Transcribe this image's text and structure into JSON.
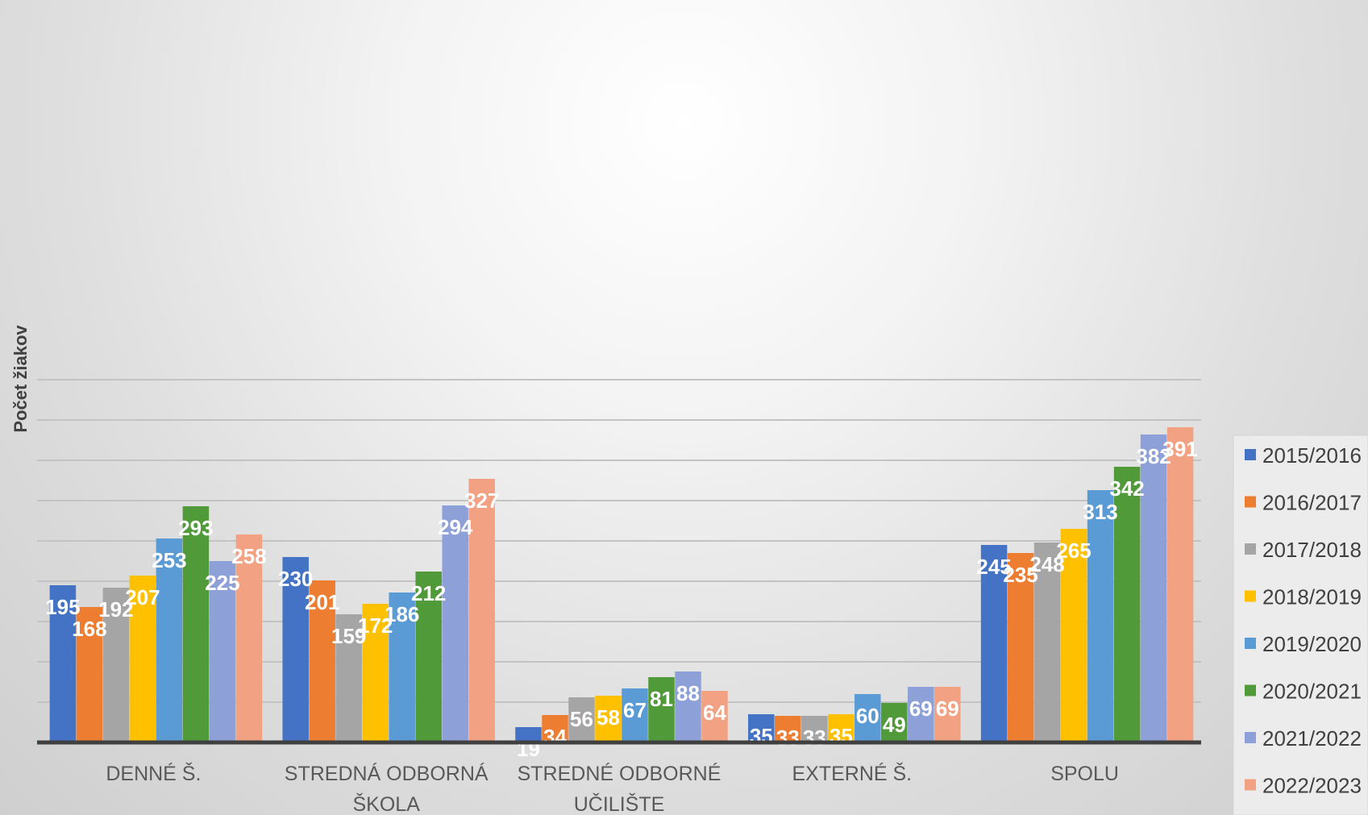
{
  "chart_data": {
    "type": "bar",
    "title": "",
    "ylabel": "Počet žiakov",
    "xlabel": "",
    "categories": [
      [
        "DENNÉ Š."
      ],
      [
        "STREDNÁ ODBORNÁ",
        "ŠKOLA"
      ],
      [
        "STREDNÉ ODBORNÉ",
        "UČILIŠTE"
      ],
      [
        "EXTERNÉ Š."
      ],
      [
        "SPOLU"
      ]
    ],
    "series": [
      {
        "name": "2015/2016",
        "color": "#4472c4",
        "values": [
          195,
          230,
          19,
          35,
          245
        ]
      },
      {
        "name": "2016/2017",
        "color": "#ed7d31",
        "values": [
          168,
          201,
          34,
          33,
          235
        ]
      },
      {
        "name": "2017/2018",
        "color": "#a5a5a5",
        "values": [
          192,
          159,
          56,
          33,
          248
        ]
      },
      {
        "name": "2018/2019",
        "color": "#ffc000",
        "values": [
          207,
          172,
          58,
          35,
          265
        ]
      },
      {
        "name": "2019/2020",
        "color": "#5b9bd5",
        "values": [
          253,
          186,
          67,
          60,
          313
        ]
      },
      {
        "name": "2020/2021",
        "color": "#519a3a",
        "values": [
          293,
          212,
          81,
          49,
          342
        ]
      },
      {
        "name": "2021/2022",
        "color": "#8ea0d8",
        "values": [
          225,
          294,
          88,
          69,
          382
        ]
      },
      {
        "name": "2022/2023",
        "color": "#f2a283",
        "values": [
          258,
          327,
          64,
          69,
          391
        ]
      }
    ],
    "ylim": [
      0,
      450
    ],
    "grid": true,
    "legend": "right",
    "data_labels": true
  }
}
